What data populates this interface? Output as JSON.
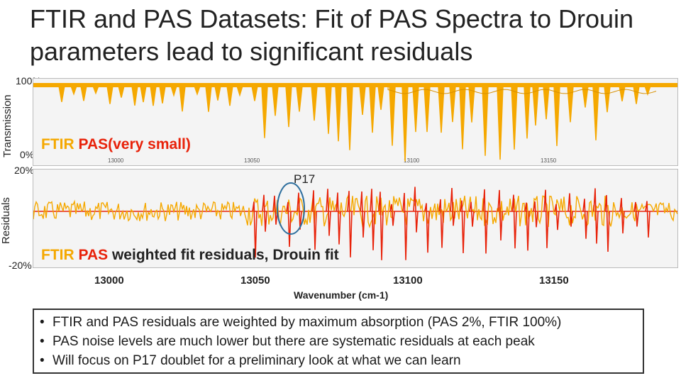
{
  "slide": {
    "title_line1": "FTIR and PAS Datasets: Fit of PAS Spectra to Drouin",
    "title_line2": "parameters lead to significant residuals"
  },
  "top_panel": {
    "ylabel": "Transmission",
    "ytick_top": "100%",
    "ytick_bottom": "0%",
    "label_ftir": "FTIR",
    "label_pas": "PAS(very small)",
    "inner_ticks": [
      "13000",
      "13050",
      "13100",
      "13150"
    ]
  },
  "bottom_panel": {
    "ylabel": "Residuals",
    "ytick_top": "20%",
    "ytick_bottom": "-20%",
    "label_ftir": "FTIR",
    "label_pas": "PAS",
    "label_rest": "weighted fit residuals, Drouin fit",
    "annotation": "P17"
  },
  "xaxis": {
    "ticks": [
      "13000",
      "13050",
      "13100",
      "13150"
    ],
    "label": "Wavenumber (cm-1)"
  },
  "bullets": [
    "FTIR and PAS residuals are weighted by maximum absorption (PAS 2%, FTIR 100%)",
    "PAS noise levels are much lower but there are systematic residuals at each peak",
    "Will focus on P17 doublet for a preliminary look at what we can learn"
  ],
  "colors": {
    "ftir": "#f5a800",
    "pas": "#e8220a",
    "circle": "#2e6f9e"
  }
}
